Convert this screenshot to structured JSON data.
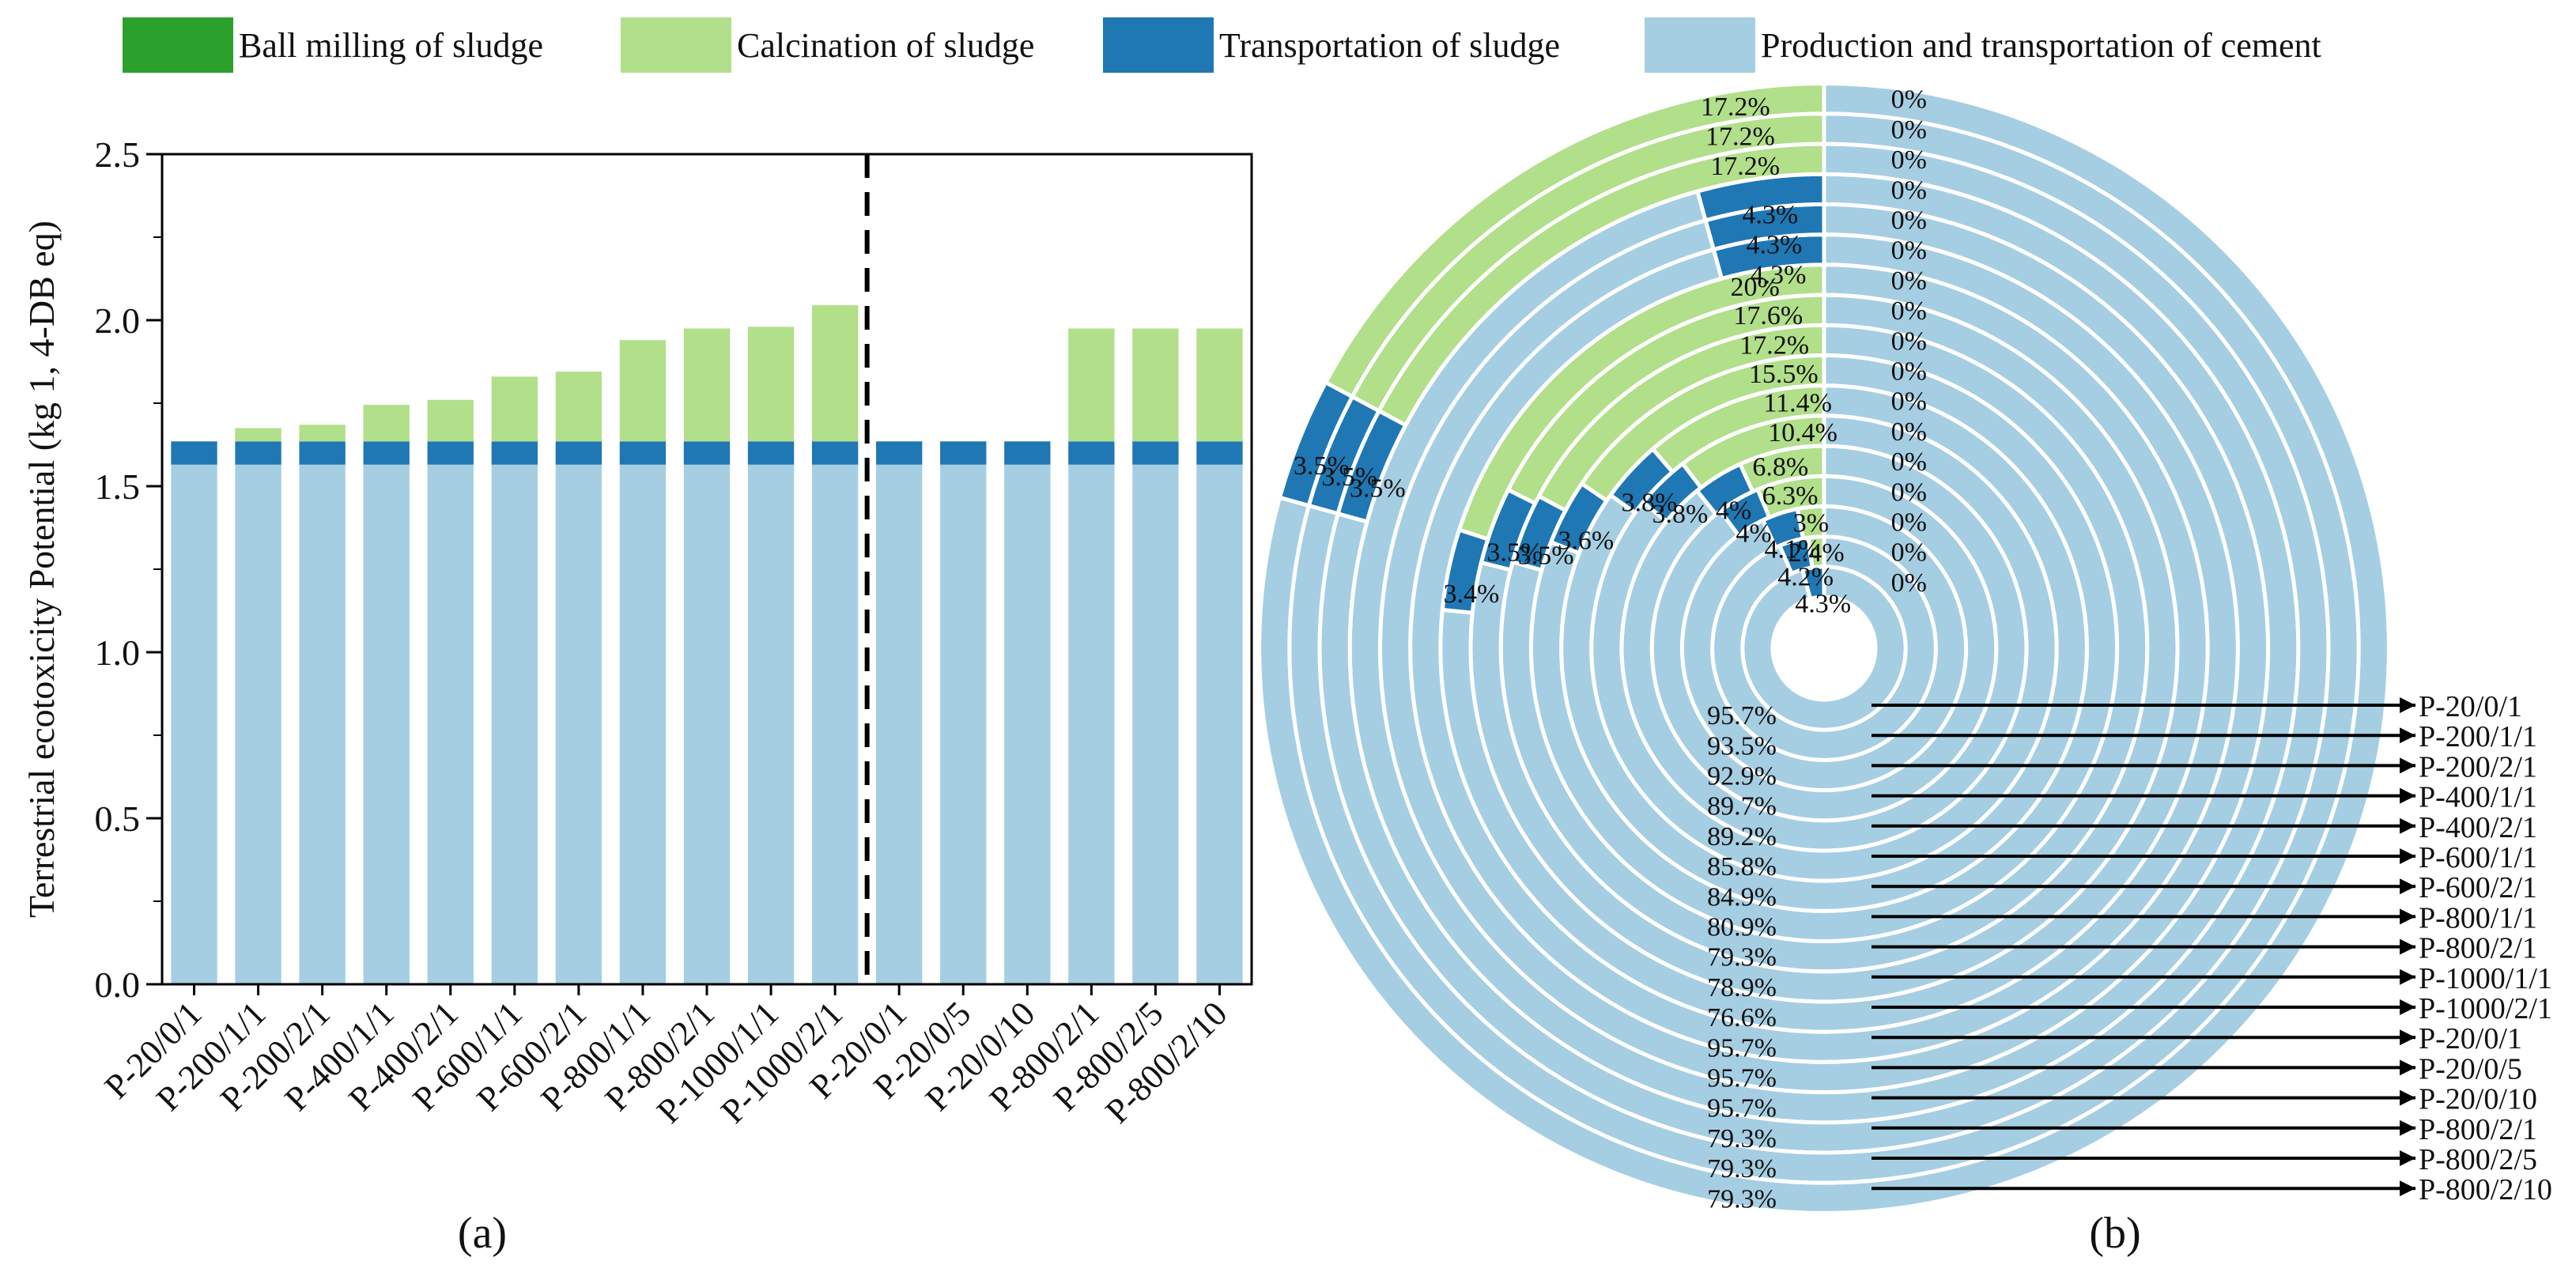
{
  "colors": {
    "ball_milling": "#2ca02c",
    "calcination": "#b2df8a",
    "transportation": "#1f78b4",
    "production": "#a6cee3"
  },
  "legend": [
    {
      "key": "ball_milling",
      "label": "Ball milling of sludge"
    },
    {
      "key": "calcination",
      "label": "Calcination of sludge"
    },
    {
      "key": "transportation",
      "label": "Transportation of sludge"
    },
    {
      "key": "production",
      "label": "Production and transportation of cement"
    }
  ],
  "panel_labels": {
    "a": "(a)",
    "b": "(b)"
  },
  "chart_data": [
    {
      "type": "bar",
      "stacked": true,
      "ylabel": "Terrestrial ecotoxicity Potential (kg 1, 4-DB eq)",
      "ylim": [
        0,
        2.5
      ],
      "yticks": [
        "0.0",
        "0.5",
        "1.0",
        "1.5",
        "2.0",
        "2.5"
      ],
      "divider_after_index": 10,
      "categories": [
        "P-20/0/1",
        "P-200/1/1",
        "P-200/2/1",
        "P-400/1/1",
        "P-400/2/1",
        "P-600/1/1",
        "P-600/2/1",
        "P-800/1/1",
        "P-800/2/1",
        "P-1000/1/1",
        "P-1000/2/1",
        "P-20/0/1",
        "P-20/0/5",
        "P-20/0/10",
        "P-800/2/1",
        "P-800/2/5",
        "P-800/2/10"
      ],
      "series": [
        {
          "name": "Production and transportation of cement",
          "key": "production",
          "values": [
            1.565,
            1.565,
            1.565,
            1.565,
            1.565,
            1.565,
            1.565,
            1.565,
            1.565,
            1.565,
            1.565,
            1.565,
            1.565,
            1.565,
            1.565,
            1.565,
            1.565
          ]
        },
        {
          "name": "Transportation of sludge",
          "key": "transportation",
          "values": [
            0.07,
            0.07,
            0.07,
            0.07,
            0.07,
            0.07,
            0.07,
            0.07,
            0.07,
            0.07,
            0.07,
            0.07,
            0.07,
            0.07,
            0.07,
            0.07,
            0.07
          ]
        },
        {
          "name": "Calcination of sludge",
          "key": "calcination",
          "values": [
            0,
            0.04,
            0.05,
            0.11,
            0.125,
            0.195,
            0.21,
            0.305,
            0.34,
            0.345,
            0.41,
            0,
            0,
            0,
            0.34,
            0.34,
            0.34
          ]
        },
        {
          "name": "Ball milling of sludge",
          "key": "ball_milling",
          "values": [
            0,
            0,
            0,
            0,
            0,
            0,
            0,
            0,
            0,
            0,
            0,
            0,
            0,
            0,
            0,
            0,
            0
          ]
        }
      ]
    },
    {
      "type": "radial-stacked-bar",
      "rings_inner_to_outer": [
        {
          "label": "P-20/0/1",
          "production": 95.7,
          "transportation": 4.3,
          "calcination": 0,
          "ball_milling": 0
        },
        {
          "label": "P-200/1/1",
          "production": 93.5,
          "transportation": 4.2,
          "calcination": 2.4,
          "ball_milling": 0
        },
        {
          "label": "P-200/2/1",
          "production": 92.9,
          "transportation": 4.1,
          "calcination": 3,
          "ball_milling": 0
        },
        {
          "label": "P-400/1/1",
          "production": 89.7,
          "transportation": 4,
          "calcination": 6.3,
          "ball_milling": 0
        },
        {
          "label": "P-400/2/1",
          "production": 89.2,
          "transportation": 4,
          "calcination": 6.8,
          "ball_milling": 0
        },
        {
          "label": "P-600/1/1",
          "production": 85.8,
          "transportation": 3.8,
          "calcination": 10.4,
          "ball_milling": 0
        },
        {
          "label": "P-600/2/1",
          "production": 84.9,
          "transportation": 3.8,
          "calcination": 11.4,
          "ball_milling": 0
        },
        {
          "label": "P-800/1/1",
          "production": 80.9,
          "transportation": 3.6,
          "calcination": 15.5,
          "ball_milling": 0
        },
        {
          "label": "P-800/2/1",
          "production": 79.3,
          "transportation": 3.5,
          "calcination": 17.2,
          "ball_milling": 0
        },
        {
          "label": "P-1000/1/1",
          "production": 78.9,
          "transportation": 3.5,
          "calcination": 17.6,
          "ball_milling": 0
        },
        {
          "label": "P-1000/2/1",
          "production": 76.6,
          "transportation": 3.4,
          "calcination": 20,
          "ball_milling": 0
        },
        {
          "label": "P-20/0/1",
          "production": 95.7,
          "transportation": 4.3,
          "calcination": 0,
          "ball_milling": 0
        },
        {
          "label": "P-20/0/5",
          "production": 95.7,
          "transportation": 4.3,
          "calcination": 0,
          "ball_milling": 0
        },
        {
          "label": "P-20/0/10",
          "production": 95.7,
          "transportation": 4.3,
          "calcination": 0,
          "ball_milling": 0
        },
        {
          "label": "P-800/2/1",
          "production": 79.3,
          "transportation": 3.5,
          "calcination": 17.2,
          "ball_milling": 0
        },
        {
          "label": "P-800/2/5",
          "production": 79.3,
          "transportation": 3.5,
          "calcination": 17.2,
          "ball_milling": 0
        },
        {
          "label": "P-800/2/10",
          "production": 79.3,
          "transportation": 3.5,
          "calcination": 17.2,
          "ball_milling": 0
        }
      ],
      "percent_labels": {
        "production": [
          "95.7%",
          "93.5%",
          "92.9%",
          "89.7%",
          "89.2%",
          "85.8%",
          "84.9%",
          "80.9%",
          "79.3%",
          "78.9%",
          "76.6%",
          "95.7%",
          "95.7%",
          "95.7%",
          "79.3%",
          "79.3%",
          "79.3%"
        ],
        "transportation": [
          "4.3%",
          "4.2%",
          "4.1%",
          "4%",
          "4%",
          "3.8%",
          "3.8%",
          "3.6%",
          "3.5%",
          "3.5%",
          "3.4%",
          "4.3%",
          "4.3%",
          "4.3%",
          "3.5%",
          "3.5%",
          "3.5%"
        ],
        "calcination": [
          "",
          "2.4%",
          "3%",
          "6.3%",
          "6.8%",
          "10.4%",
          "11.4%",
          "15.5%",
          "17.2%",
          "17.6%",
          "20%",
          "",
          "",
          "",
          "17.2%",
          "17.2%",
          "17.2%"
        ],
        "ball_milling": [
          "0%",
          "0%",
          "0%",
          "0%",
          "0%",
          "0%",
          "0%",
          "0%",
          "0%",
          "0%",
          "0%",
          "0%",
          "0%",
          "0%",
          "0%",
          "0%",
          "0%"
        ]
      },
      "ring_legend_labels": [
        "P-20/0/1",
        "P-200/1/1",
        "P-200/2/1",
        "P-400/1/1",
        "P-400/2/1",
        "P-600/1/1",
        "P-600/2/1",
        "P-800/1/1",
        "P-800/2/1",
        "P-1000/1/1",
        "P-1000/2/1",
        "P-20/0/1",
        "P-20/0/5",
        "P-20/0/10",
        "P-800/2/1",
        "P-800/2/5",
        "P-800/2/10"
      ]
    }
  ]
}
